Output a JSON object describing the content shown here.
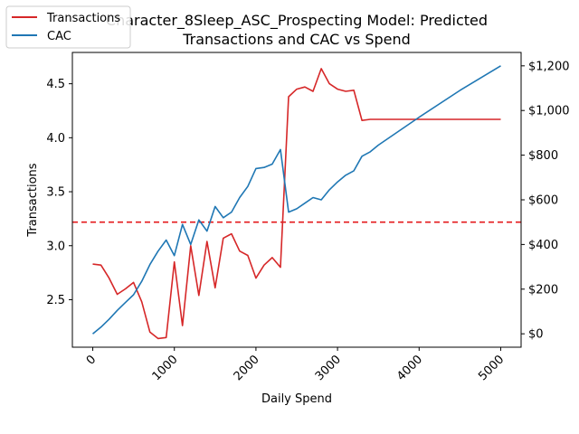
{
  "chart_data": {
    "type": "line",
    "title_line1": "Character_8Sleep_ASC_Prospecting Model: Predicted",
    "title_line2": "Transactions and CAC vs Spend",
    "xlabel": "Daily Spend",
    "ylabel_left": "Transactions",
    "ylabel_right": "",
    "xlim": [
      -250,
      5250
    ],
    "ylim_left": [
      2.06,
      4.79
    ],
    "ylim_right": [
      -60,
      1260
    ],
    "x_ticks": [
      0,
      1000,
      2000,
      3000,
      4000,
      5000
    ],
    "x_tick_labels": [
      "0",
      "1000",
      "2000",
      "3000",
      "4000",
      "5000"
    ],
    "y_left_ticks": [
      2.5,
      3.0,
      3.5,
      4.0,
      4.5
    ],
    "y_left_tick_labels": [
      "2.5",
      "3.0",
      "3.5",
      "4.0",
      "4.5"
    ],
    "y_right_ticks": [
      0,
      200,
      400,
      600,
      800,
      1000,
      1200
    ],
    "y_right_tick_labels": [
      "$0",
      "$200",
      "$400",
      "$600",
      "$800",
      "$1,000",
      "$1,200"
    ],
    "reference_line": {
      "axis": "right",
      "value": 500,
      "style": "dashed",
      "color": "#e41a1c"
    },
    "legend_position": "top-left",
    "grid": false,
    "series": [
      {
        "name": "Transactions",
        "axis": "left",
        "color": "#d62728",
        "x": [
          0,
          100,
          200,
          300,
          400,
          500,
          600,
          700,
          800,
          900,
          1000,
          1100,
          1200,
          1300,
          1400,
          1500,
          1600,
          1700,
          1800,
          1900,
          2000,
          2100,
          2200,
          2300,
          2400,
          2500,
          2600,
          2700,
          2800,
          2900,
          3000,
          3100,
          3200,
          3300,
          3400,
          3500,
          4000,
          4500,
          5000
        ],
        "y": [
          2.83,
          2.82,
          2.7,
          2.55,
          2.6,
          2.66,
          2.48,
          2.2,
          2.14,
          2.15,
          2.85,
          2.26,
          3.0,
          2.54,
          3.04,
          2.61,
          3.07,
          3.11,
          2.95,
          2.91,
          2.7,
          2.82,
          2.89,
          2.8,
          4.38,
          4.45,
          4.47,
          4.43,
          4.64,
          4.5,
          4.45,
          4.43,
          4.44,
          4.16,
          4.17,
          4.17,
          4.17,
          4.17,
          4.17
        ]
      },
      {
        "name": "CAC",
        "axis": "right",
        "color": "#1f77b4",
        "x": [
          0,
          100,
          200,
          300,
          400,
          500,
          600,
          700,
          800,
          900,
          1000,
          1100,
          1200,
          1300,
          1400,
          1500,
          1600,
          1700,
          1800,
          1900,
          2000,
          2100,
          2200,
          2300,
          2400,
          2500,
          2600,
          2700,
          2800,
          2900,
          3000,
          3100,
          3200,
          3300,
          3400,
          3500,
          4000,
          4500,
          5000
        ],
        "y": [
          0,
          30,
          65,
          105,
          140,
          175,
          235,
          310,
          370,
          420,
          350,
          490,
          400,
          510,
          460,
          570,
          520,
          545,
          610,
          660,
          740,
          745,
          760,
          825,
          545,
          560,
          585,
          610,
          600,
          645,
          680,
          710,
          730,
          795,
          815,
          845,
          970,
          1090,
          1200
        ]
      }
    ]
  }
}
